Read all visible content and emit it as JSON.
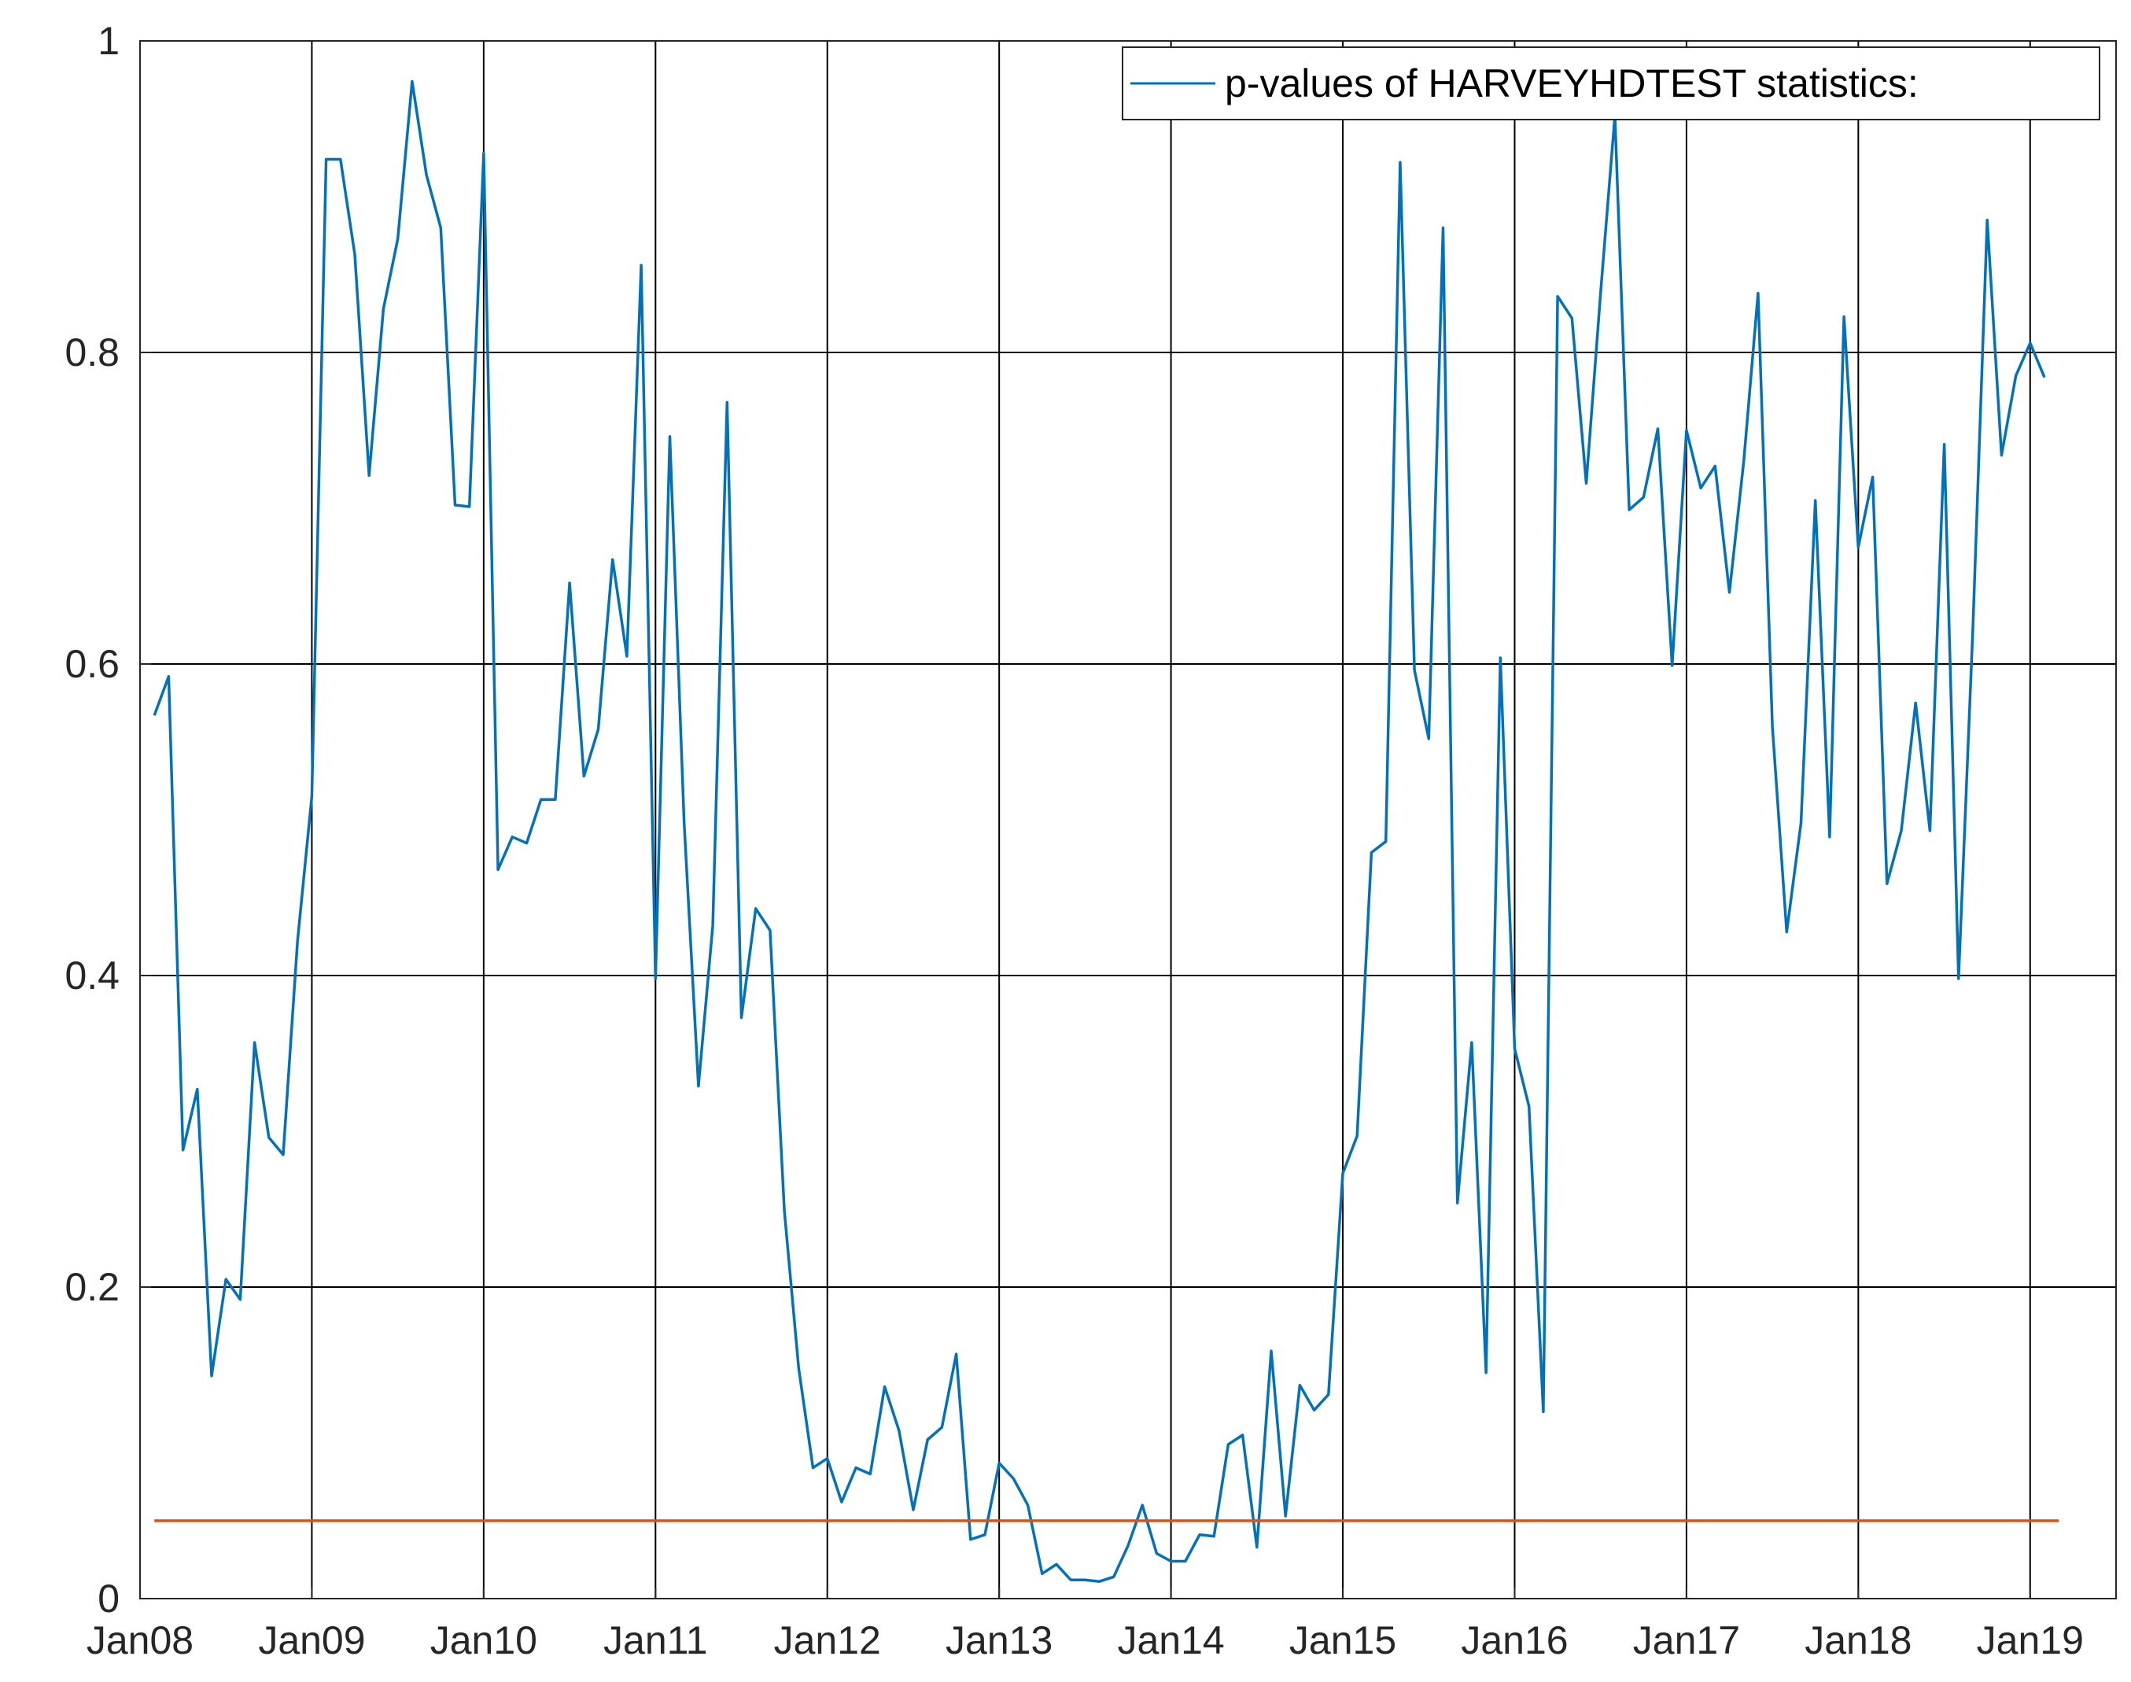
{
  "chart_data": {
    "type": "line",
    "title": "",
    "xlabel": "",
    "ylabel": "",
    "ylim": [
      0,
      1
    ],
    "xlim": [
      "2008-01",
      "2019-07"
    ],
    "grid": true,
    "legend": {
      "placement": "top-right",
      "entries": [
        "p-values of HARVEYHDTEST statistics:"
      ]
    },
    "x_ticks": [
      {
        "date": "2008-01",
        "label": "Jan08"
      },
      {
        "date": "2009-01",
        "label": "Jan09"
      },
      {
        "date": "2010-01",
        "label": "Jan10"
      },
      {
        "date": "2011-01",
        "label": "Jan11"
      },
      {
        "date": "2012-01",
        "label": "Jan12"
      },
      {
        "date": "2013-01",
        "label": "Jan13"
      },
      {
        "date": "2014-01",
        "label": "Jan14"
      },
      {
        "date": "2015-01",
        "label": "Jan15"
      },
      {
        "date": "2016-01",
        "label": "Jan16"
      },
      {
        "date": "2017-01",
        "label": "Jan17"
      },
      {
        "date": "2018-01",
        "label": "Jan18"
      },
      {
        "date": "2019-01",
        "label": "Jan19"
      }
    ],
    "y_ticks": [
      {
        "value": 0,
        "label": "0"
      },
      {
        "value": 0.2,
        "label": "0.2"
      },
      {
        "value": 0.4,
        "label": "0.4"
      },
      {
        "value": 0.6,
        "label": "0.6"
      },
      {
        "value": 0.8,
        "label": "0.8"
      },
      {
        "value": 1,
        "label": "1"
      }
    ],
    "series": [
      {
        "name": "p-values of HARVEYHDTEST statistics:",
        "color": "#0072BD",
        "start": "2008-02",
        "frequency": "monthly",
        "values": [
          0.567,
          0.592,
          0.288,
          0.327,
          0.143,
          0.205,
          0.192,
          0.357,
          0.296,
          0.285,
          0.422,
          0.515,
          0.924,
          0.924,
          0.863,
          0.721,
          0.828,
          0.873,
          0.974,
          0.914,
          0.88,
          0.702,
          0.701,
          0.928,
          0.468,
          0.489,
          0.485,
          0.513,
          0.513,
          0.652,
          0.528,
          0.558,
          0.667,
          0.605,
          0.856,
          0.398,
          0.746,
          0.498,
          0.329,
          0.432,
          0.768,
          0.373,
          0.443,
          0.429,
          0.249,
          0.148,
          0.084,
          0.09,
          0.062,
          0.084,
          0.08,
          0.136,
          0.108,
          0.057,
          0.102,
          0.11,
          0.157,
          0.038,
          0.041,
          0.087,
          0.077,
          0.06,
          0.016,
          0.022,
          0.012,
          0.012,
          0.011,
          0.014,
          0.034,
          0.06,
          0.029,
          0.024,
          0.024,
          0.041,
          0.04,
          0.099,
          0.105,
          0.033,
          0.159,
          0.053,
          0.137,
          0.121,
          0.131,
          0.273,
          0.297,
          0.479,
          0.486,
          0.922,
          0.596,
          0.552,
          0.88,
          0.254,
          0.357,
          0.145,
          0.604,
          0.353,
          0.316,
          0.12,
          0.836,
          0.822,
          0.716,
          0.838,
          0.952,
          0.699,
          0.707,
          0.751,
          0.599,
          0.75,
          0.713,
          0.727,
          0.646,
          0.73,
          0.838,
          0.56,
          0.428,
          0.498,
          0.705,
          0.489,
          0.823,
          0.675,
          0.72,
          0.459,
          0.493,
          0.575,
          0.493,
          0.741,
          0.398,
          0.623,
          0.885,
          0.734,
          0.785,
          0.806,
          0.784
        ]
      },
      {
        "name": "",
        "color": "#D95319",
        "start": "2008-02",
        "end": "2019-03",
        "frequency": "constant",
        "values": [
          0.05
        ]
      }
    ]
  }
}
